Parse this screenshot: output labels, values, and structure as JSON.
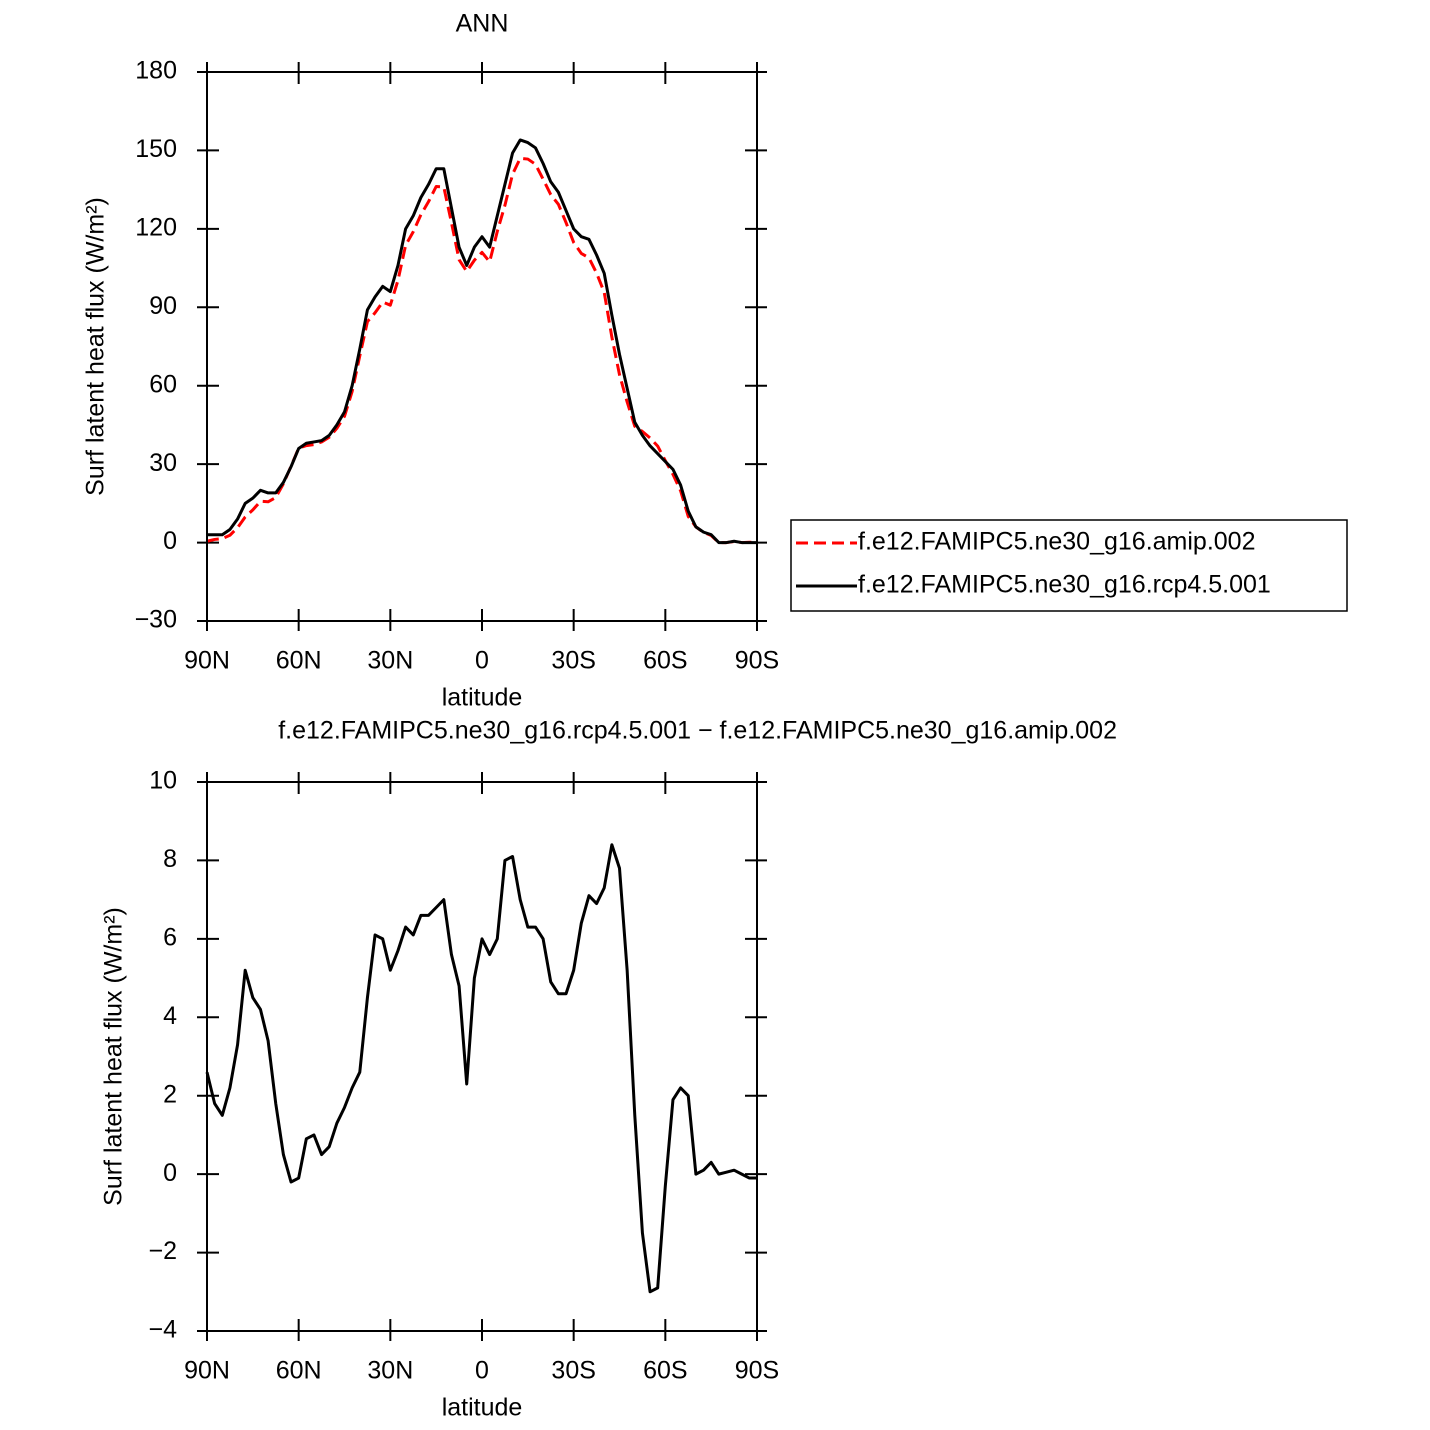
{
  "chart_data": [
    {
      "type": "line",
      "title": "ANN",
      "x_label": "latitude",
      "y_label": "Surf latent heat flux (W/m²)",
      "x": [
        90,
        87.5,
        85,
        82.5,
        80,
        77.5,
        75,
        72.5,
        70,
        67.5,
        65,
        62.5,
        60,
        57.5,
        55,
        52.5,
        50,
        47.5,
        45,
        42.5,
        40,
        37.5,
        35,
        32.5,
        30,
        27.5,
        25,
        22.5,
        20,
        17.5,
        15,
        12.5,
        10,
        7.5,
        5,
        2.5,
        0,
        -2.5,
        -5,
        -7.5,
        -10,
        -12.5,
        -15,
        -17.5,
        -20,
        -22.5,
        -25,
        -27.5,
        -30,
        -32.5,
        -35,
        -37.5,
        -40,
        -42.5,
        -45,
        -47.5,
        -50,
        -52.5,
        -55,
        -57.5,
        -60,
        -62.5,
        -65,
        -67.5,
        -70,
        -72.5,
        -75,
        -77.5,
        -80,
        -82.5,
        -85,
        -87.5,
        -90
      ],
      "series": [
        {
          "name": "f.e12.FAMIPC5.ne30_g16.amip.002",
          "color": "#ff0000",
          "linestyle": "dashed",
          "values": [
            0.5,
            1.2,
            1.5,
            2.8,
            5.7,
            9.8,
            12.5,
            15.8,
            15.6,
            17.2,
            22.5,
            29.2,
            36.1,
            37.1,
            37.5,
            38.5,
            40.3,
            43.7,
            48.3,
            57.8,
            71.4,
            84.5,
            87.9,
            92,
            90.8,
            100.3,
            113.7,
            118.9,
            125.4,
            130.4,
            136.2,
            136,
            122.4,
            108.2,
            103.7,
            108,
            111,
            107.4,
            119,
            129,
            140.9,
            147,
            146.7,
            144.7,
            139,
            133.1,
            129.4,
            122.4,
            114.8,
            110.6,
            108.9,
            103.1,
            95.7,
            78.6,
            64.2,
            53.8,
            44.5,
            42.5,
            40,
            36.9,
            31.3,
            26.1,
            19.8,
            10,
            6,
            3.9,
            2.7,
            0,
            0,
            0.4,
            0,
            0.1,
            0.1
          ]
        },
        {
          "name": "f.e12.FAMIPC5.ne30_g16.rcp4.5.001",
          "color": "#000000",
          "linestyle": "solid",
          "values": [
            3,
            3,
            3,
            5,
            9,
            15,
            17,
            20,
            19,
            19,
            23,
            29,
            36,
            38,
            38.5,
            39,
            41,
            45,
            50,
            60,
            74,
            89,
            94,
            98,
            96,
            106,
            120,
            125,
            132,
            137,
            143,
            143,
            128,
            113,
            106,
            113,
            117,
            113,
            125,
            137,
            149,
            154,
            153,
            151,
            145,
            138,
            134,
            127,
            120,
            117,
            116,
            110,
            103,
            87,
            72,
            59,
            46,
            41,
            37,
            34,
            31,
            28,
            22,
            12,
            6,
            4,
            3,
            0,
            0,
            0.5,
            0,
            0,
            0
          ]
        }
      ],
      "xlim": [
        90,
        -90
      ],
      "ylim": [
        -30,
        180
      ],
      "xticks": [
        {
          "value": 90,
          "label": "90N"
        },
        {
          "value": 60,
          "label": "60N"
        },
        {
          "value": 30,
          "label": "30N"
        },
        0,
        {
          "value": -30,
          "label": "30S"
        },
        {
          "value": -60,
          "label": "60S"
        },
        {
          "value": -90,
          "label": "90S"
        }
      ],
      "yticks": [
        {
          "value": -30,
          "label": "−30"
        },
        0,
        30,
        60,
        90,
        120,
        150,
        180
      ],
      "legend": "right"
    },
    {
      "type": "line",
      "title": "f.e12.FAMIPC5.ne30_g16.rcp4.5.001 − f.e12.FAMIPC5.ne30_g16.amip.002",
      "x_label": "latitude",
      "y_label": "Surf latent heat flux (W/m²)",
      "x": [
        90,
        87.5,
        85,
        82.5,
        80,
        77.5,
        75,
        72.5,
        70,
        67.5,
        65,
        62.5,
        60,
        57.5,
        55,
        52.5,
        50,
        47.5,
        45,
        42.5,
        40,
        37.5,
        35,
        32.5,
        30,
        27.5,
        25,
        22.5,
        20,
        17.5,
        15,
        12.5,
        10,
        7.5,
        5,
        2.5,
        0,
        -2.5,
        -5,
        -7.5,
        -10,
        -12.5,
        -15,
        -17.5,
        -20,
        -22.5,
        -25,
        -27.5,
        -30,
        -32.5,
        -35,
        -37.5,
        -40,
        -42.5,
        -45,
        -47.5,
        -50,
        -52.5,
        -55,
        -57.5,
        -60,
        -62.5,
        -65,
        -67.5,
        -70,
        -72.5,
        -75,
        -77.5,
        -80,
        -82.5,
        -85,
        -87.5,
        -90
      ],
      "series": [
        {
          "color": "#000000",
          "linestyle": "solid",
          "values": [
            2.6,
            1.8,
            1.5,
            2.2,
            3.3,
            5.2,
            4.5,
            4.2,
            3.4,
            1.8,
            0.5,
            -0.2,
            -0.1,
            0.9,
            1.0,
            0.5,
            0.7,
            1.3,
            1.7,
            2.2,
            2.6,
            4.5,
            6.1,
            6.0,
            5.2,
            5.7,
            6.3,
            6.1,
            6.6,
            6.6,
            6.8,
            7.0,
            5.6,
            4.8,
            2.3,
            5.0,
            6.0,
            5.6,
            6.0,
            8.0,
            8.1,
            7.0,
            6.3,
            6.3,
            6.0,
            4.9,
            4.6,
            4.6,
            5.2,
            6.4,
            7.1,
            6.9,
            7.3,
            8.4,
            7.8,
            5.2,
            1.5,
            -1.5,
            -3.0,
            -2.9,
            -0.3,
            1.9,
            2.2,
            2.0,
            0.0,
            0.1,
            0.3,
            0.0,
            0.05,
            0.1,
            0.0,
            -0.1,
            -0.1
          ]
        }
      ],
      "xlim": [
        90,
        -90
      ],
      "ylim": [
        -4,
        10
      ],
      "xticks": [
        {
          "value": 90,
          "label": "90N"
        },
        {
          "value": 60,
          "label": "60N"
        },
        {
          "value": 30,
          "label": "30N"
        },
        0,
        {
          "value": -30,
          "label": "30S"
        },
        {
          "value": -60,
          "label": "60S"
        },
        {
          "value": -90,
          "label": "90S"
        }
      ],
      "yticks": [
        {
          "value": -4,
          "label": "−4"
        },
        {
          "value": -2,
          "label": "−2"
        },
        0,
        2,
        4,
        6,
        8,
        10
      ]
    }
  ]
}
